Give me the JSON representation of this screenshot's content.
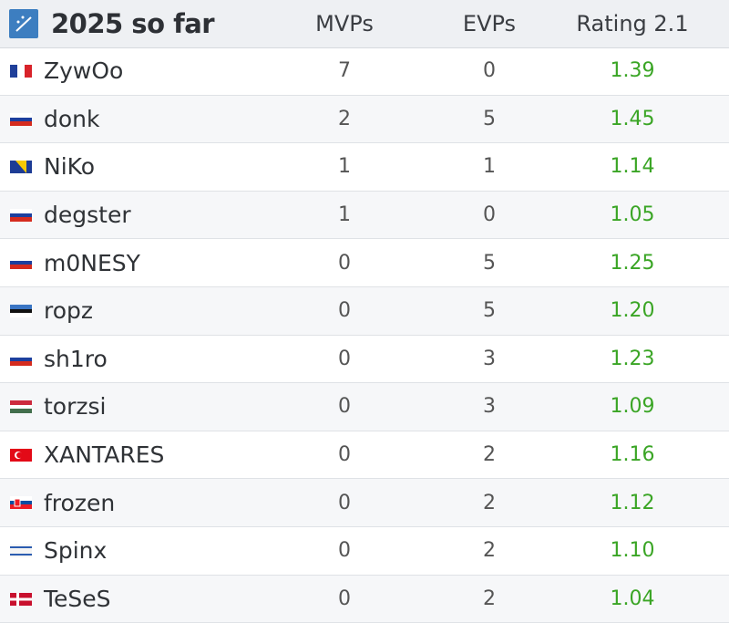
{
  "header": {
    "title": "2025 so far",
    "columns": [
      "MVPs",
      "EVPs",
      "Rating 2.1"
    ]
  },
  "table": {
    "rows": [
      [
        "ZywOo",
        7,
        0,
        "1.39"
      ],
      [
        "donk",
        2,
        5,
        "1.45"
      ],
      [
        "NiKo",
        1,
        1,
        "1.14"
      ],
      [
        "degster",
        1,
        0,
        "1.05"
      ],
      [
        "m0NESY",
        0,
        5,
        "1.25"
      ],
      [
        "ropz",
        0,
        5,
        "1.20"
      ],
      [
        "sh1ro",
        0,
        3,
        "1.23"
      ],
      [
        "torzsi",
        0,
        3,
        "1.09"
      ],
      [
        "XANTARES",
        0,
        2,
        "1.16"
      ],
      [
        "frozen",
        0,
        2,
        "1.12"
      ],
      [
        "Spinx",
        0,
        2,
        "1.10"
      ],
      [
        "TeSeS",
        0,
        2,
        "1.04"
      ]
    ]
  }
}
